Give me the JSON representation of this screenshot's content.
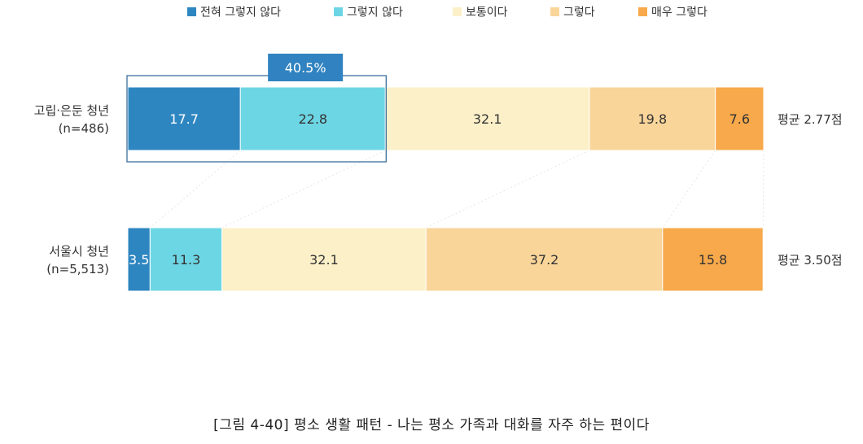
{
  "chart_data": {
    "type": "bar",
    "orientation": "horizontal",
    "stacked": true,
    "categories": [
      {
        "name": "고립·은둔 청년",
        "sub": "(n=486)",
        "average": "평균 2.77점"
      },
      {
        "name": "서울시 청년",
        "sub": "(n=5,513)",
        "average": "평균 3.50점"
      }
    ],
    "series": [
      {
        "name": "전혀 그렇지 않다",
        "color": "#2e86c1",
        "values": [
          17.7,
          3.5
        ]
      },
      {
        "name": "그렇지 않다",
        "color": "#6dd6e4",
        "values": [
          22.8,
          11.3
        ]
      },
      {
        "name": "보통이다",
        "color": "#fbf0c8",
        "values": [
          32.1,
          32.1
        ]
      },
      {
        "name": "그렇다",
        "color": "#f9d59a",
        "values": [
          19.8,
          37.2
        ]
      },
      {
        "name": "매우 그렇다",
        "color": "#f7a94b",
        "values": [
          7.6,
          15.8
        ]
      }
    ],
    "highlight": {
      "row": 0,
      "series": [
        0,
        1
      ],
      "label": "40.5%",
      "color": "#3083c0"
    },
    "legend_position": "top",
    "xlim": [
      0,
      100
    ],
    "grid": false
  },
  "caption": "[그림 4-40] 평소 생활 패턴 - 나는 평소 가족과 대화를 자주 하는 편이다"
}
